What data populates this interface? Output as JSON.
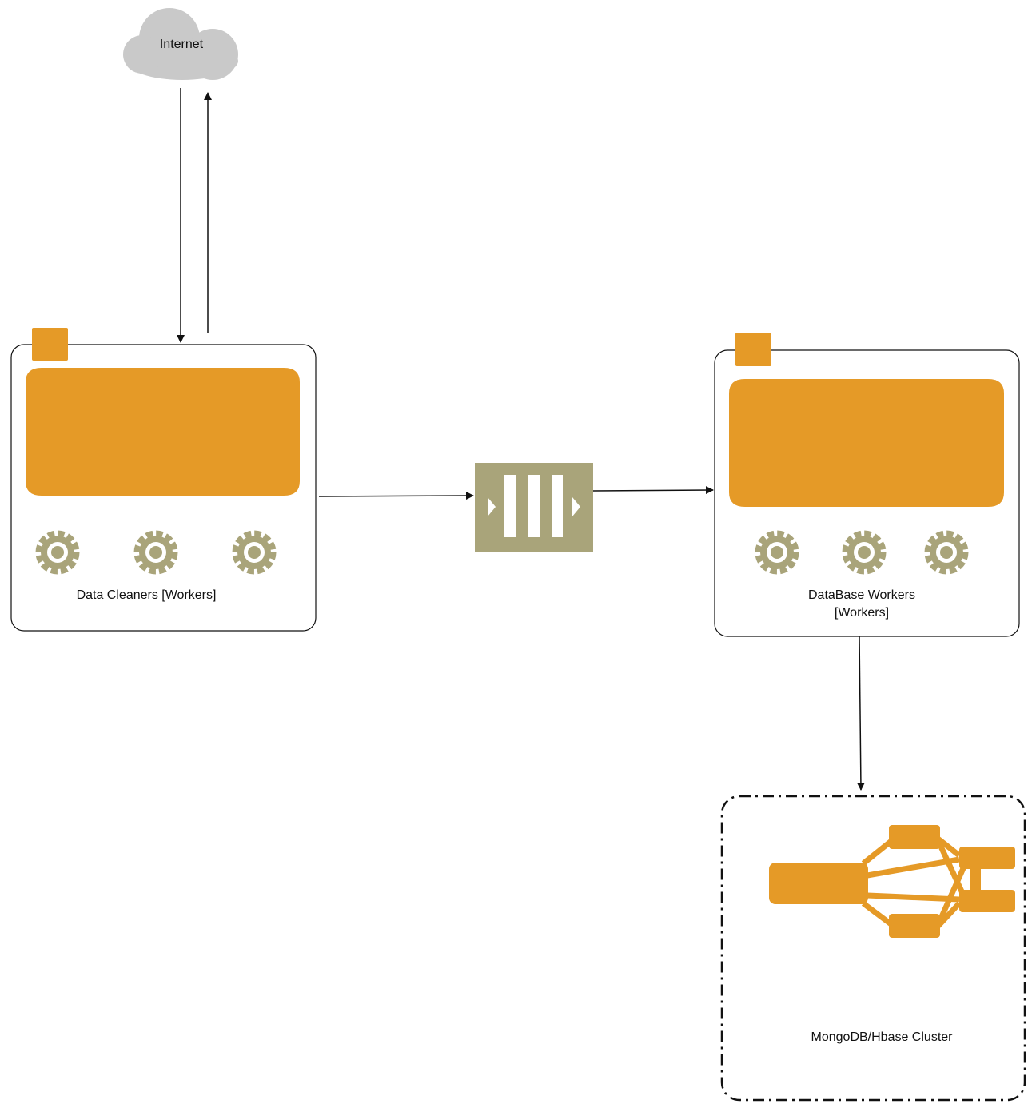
{
  "nodes": {
    "internet": {
      "label": "Internet",
      "icon": "cloud-icon"
    },
    "data_cleaners": {
      "label": "Data Cleaners [Workers]",
      "icon": "worker-group-icon"
    },
    "queue": {
      "label": "",
      "icon": "message-queue-icon"
    },
    "database_workers": {
      "label_line1": "DataBase Workers",
      "label_line2": "[Workers]",
      "icon": "worker-group-icon"
    },
    "cluster": {
      "label": "MongoDB/Hbase Cluster",
      "icon": "cluster-icon"
    }
  },
  "edges": [
    {
      "from": "internet",
      "to": "data_cleaners"
    },
    {
      "from": "data_cleaners",
      "to": "internet"
    },
    {
      "from": "data_cleaners",
      "to": "queue"
    },
    {
      "from": "queue",
      "to": "database_workers"
    },
    {
      "from": "database_workers",
      "to": "cluster"
    }
  ],
  "colors": {
    "accent_orange": "#E59A27",
    "olive": "#A9A47A",
    "cloud_gray": "#C9C9C9",
    "line": "#111111"
  }
}
